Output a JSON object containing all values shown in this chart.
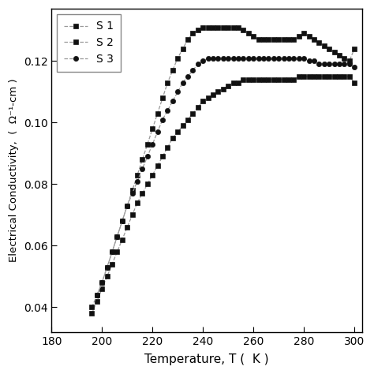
{
  "xlabel": "Temperature, T (  K )",
  "ylabel": "Electrical Conductivity,  (  Ω⁻¹-cm )",
  "xlim": [
    180,
    303
  ],
  "ylim": [
    0.032,
    0.137
  ],
  "xticks": [
    180,
    200,
    220,
    240,
    260,
    280,
    300
  ],
  "yticks": [
    0.04,
    0.06,
    0.08,
    0.1,
    0.12
  ],
  "legend_labels": [
    "S 1",
    "S 2",
    "S 3"
  ],
  "background_color": "#ffffff",
  "S1_x": [
    196,
    198,
    200,
    202,
    204,
    206,
    208,
    210,
    212,
    214,
    216,
    218,
    220,
    222,
    224,
    226,
    228,
    230,
    232,
    234,
    236,
    238,
    240,
    242,
    244,
    246,
    248,
    250,
    252,
    254,
    256,
    258,
    260,
    262,
    264,
    266,
    268,
    270,
    272,
    274,
    276,
    278,
    280,
    282,
    284,
    286,
    288,
    290,
    292,
    294,
    296,
    298,
    300
  ],
  "S1_y": [
    0.038,
    0.042,
    0.046,
    0.05,
    0.054,
    0.058,
    0.062,
    0.066,
    0.07,
    0.074,
    0.077,
    0.08,
    0.083,
    0.086,
    0.089,
    0.092,
    0.095,
    0.097,
    0.099,
    0.101,
    0.103,
    0.105,
    0.107,
    0.108,
    0.109,
    0.11,
    0.111,
    0.112,
    0.113,
    0.113,
    0.114,
    0.114,
    0.114,
    0.114,
    0.114,
    0.114,
    0.114,
    0.114,
    0.114,
    0.114,
    0.114,
    0.115,
    0.115,
    0.115,
    0.115,
    0.115,
    0.115,
    0.115,
    0.115,
    0.115,
    0.115,
    0.115,
    0.113
  ],
  "S2_x": [
    196,
    198,
    200,
    202,
    204,
    206,
    208,
    210,
    212,
    214,
    216,
    218,
    220,
    222,
    224,
    226,
    228,
    230,
    232,
    234,
    236,
    238,
    240,
    242,
    244,
    246,
    248,
    250,
    252,
    254,
    256,
    258,
    260,
    262,
    264,
    266,
    268,
    270,
    272,
    274,
    276,
    278,
    280,
    282,
    284,
    286,
    288,
    290,
    292,
    294,
    296,
    298,
    300
  ],
  "S2_y": [
    0.04,
    0.044,
    0.048,
    0.053,
    0.058,
    0.063,
    0.068,
    0.073,
    0.078,
    0.083,
    0.088,
    0.093,
    0.098,
    0.103,
    0.108,
    0.113,
    0.117,
    0.121,
    0.124,
    0.127,
    0.129,
    0.13,
    0.131,
    0.131,
    0.131,
    0.131,
    0.131,
    0.131,
    0.131,
    0.131,
    0.13,
    0.129,
    0.128,
    0.127,
    0.127,
    0.127,
    0.127,
    0.127,
    0.127,
    0.127,
    0.127,
    0.128,
    0.129,
    0.128,
    0.127,
    0.126,
    0.125,
    0.124,
    0.123,
    0.122,
    0.121,
    0.12,
    0.124
  ],
  "S3_x": [
    198,
    200,
    202,
    204,
    206,
    208,
    210,
    212,
    214,
    216,
    218,
    220,
    222,
    224,
    226,
    228,
    230,
    232,
    234,
    236,
    238,
    240,
    242,
    244,
    246,
    248,
    250,
    252,
    254,
    256,
    258,
    260,
    262,
    264,
    266,
    268,
    270,
    272,
    274,
    276,
    278,
    280,
    282,
    284,
    286,
    288,
    290,
    292,
    294,
    296,
    298,
    300
  ],
  "S3_y": [
    0.044,
    0.048,
    0.053,
    0.058,
    0.063,
    0.068,
    0.073,
    0.077,
    0.081,
    0.085,
    0.089,
    0.093,
    0.097,
    0.101,
    0.104,
    0.107,
    0.11,
    0.113,
    0.115,
    0.117,
    0.119,
    0.12,
    0.121,
    0.121,
    0.121,
    0.121,
    0.121,
    0.121,
    0.121,
    0.121,
    0.121,
    0.121,
    0.121,
    0.121,
    0.121,
    0.121,
    0.121,
    0.121,
    0.121,
    0.121,
    0.121,
    0.121,
    0.12,
    0.12,
    0.119,
    0.119,
    0.119,
    0.119,
    0.119,
    0.119,
    0.119,
    0.118
  ]
}
